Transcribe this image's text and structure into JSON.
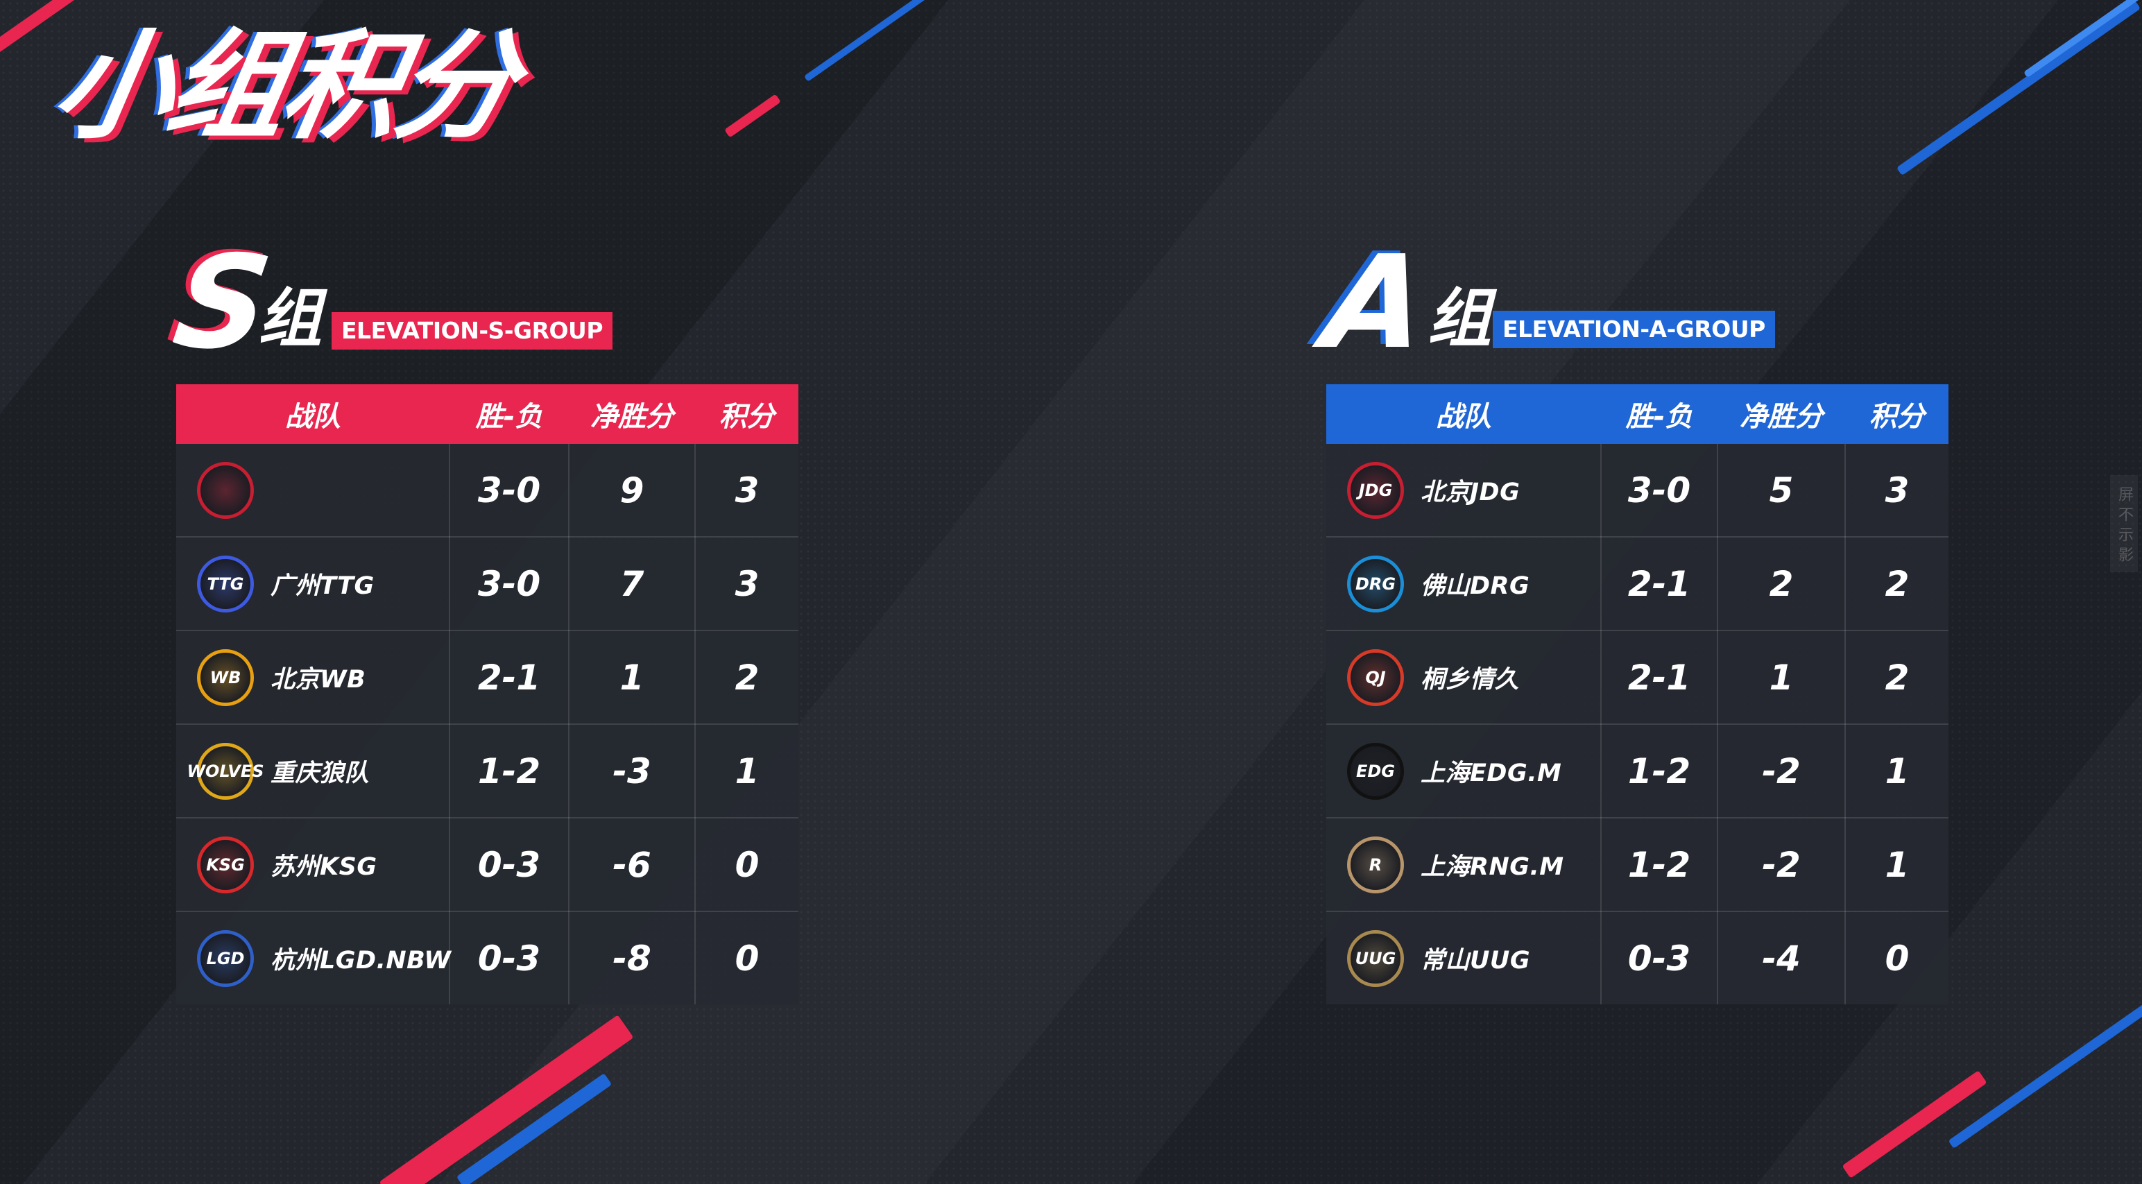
{
  "title": "小组积分",
  "headers": [
    "战队",
    "胜-负",
    "净胜分",
    "积分"
  ],
  "accent_colors": {
    "red": "#e8264f",
    "blue": "#1f66d6"
  },
  "groups": [
    {
      "letter": "S",
      "suffix": "组",
      "tag": "ELEVATION-S-GROUP",
      "color": "#e8264f",
      "rows": [
        {
          "team": "",
          "record": "3-0",
          "net": "9",
          "points": "3",
          "logo_icon": "red-team-logo-icon",
          "logo_text": "",
          "logo_color": "#c81e32"
        },
        {
          "team": "广州TTG",
          "record": "3-0",
          "net": "7",
          "points": "3",
          "logo_icon": "ttg-logo-icon",
          "logo_text": "TTG",
          "logo_color": "#3d5ae0"
        },
        {
          "team": "北京WB",
          "record": "2-1",
          "net": "1",
          "points": "2",
          "logo_icon": "wb-logo-icon",
          "logo_text": "WB",
          "logo_color": "#e8a010"
        },
        {
          "team": "重庆狼队",
          "record": "1-2",
          "net": "-3",
          "points": "1",
          "logo_icon": "wolves-logo-icon",
          "logo_text": "WOLVES",
          "logo_color": "#e0a818"
        },
        {
          "team": "苏州KSG",
          "record": "0-3",
          "net": "-6",
          "points": "0",
          "logo_icon": "ksg-logo-icon",
          "logo_text": "KSG",
          "logo_color": "#d8282c"
        },
        {
          "team": "杭州LGD.NBW",
          "record": "0-3",
          "net": "-8",
          "points": "0",
          "logo_icon": "lgd-logo-icon",
          "logo_text": "LGD",
          "logo_color": "#2f5fc8"
        }
      ]
    },
    {
      "letter": "A",
      "suffix": "组",
      "tag": "ELEVATION-A-GROUP",
      "color": "#1f66d6",
      "rows": [
        {
          "team": "北京JDG",
          "record": "3-0",
          "net": "5",
          "points": "3",
          "logo_icon": "jdg-logo-icon",
          "logo_text": "JDG",
          "logo_color": "#c81e32"
        },
        {
          "team": "佛山DRG",
          "record": "2-1",
          "net": "2",
          "points": "2",
          "logo_icon": "drg-logo-icon",
          "logo_text": "DRG",
          "logo_color": "#1a8fd8"
        },
        {
          "team": "桐乡情久",
          "record": "2-1",
          "net": "1",
          "points": "2",
          "logo_icon": "qj-logo-icon",
          "logo_text": "QJ",
          "logo_color": "#d83a28"
        },
        {
          "team": "上海EDG.M",
          "record": "1-2",
          "net": "-2",
          "points": "1",
          "logo_icon": "edg-logo-icon",
          "logo_text": "EDG",
          "logo_color": "#111111"
        },
        {
          "team": "上海RNG.M",
          "record": "1-2",
          "net": "-2",
          "points": "1",
          "logo_icon": "rng-logo-icon",
          "logo_text": "R",
          "logo_color": "#b8956a"
        },
        {
          "team": "常山UUG",
          "record": "0-3",
          "net": "-4",
          "points": "0",
          "logo_icon": "uug-logo-icon",
          "logo_text": "UUG",
          "logo_color": "#a88a50"
        }
      ]
    }
  ],
  "side_note": "屏 不 示 影"
}
